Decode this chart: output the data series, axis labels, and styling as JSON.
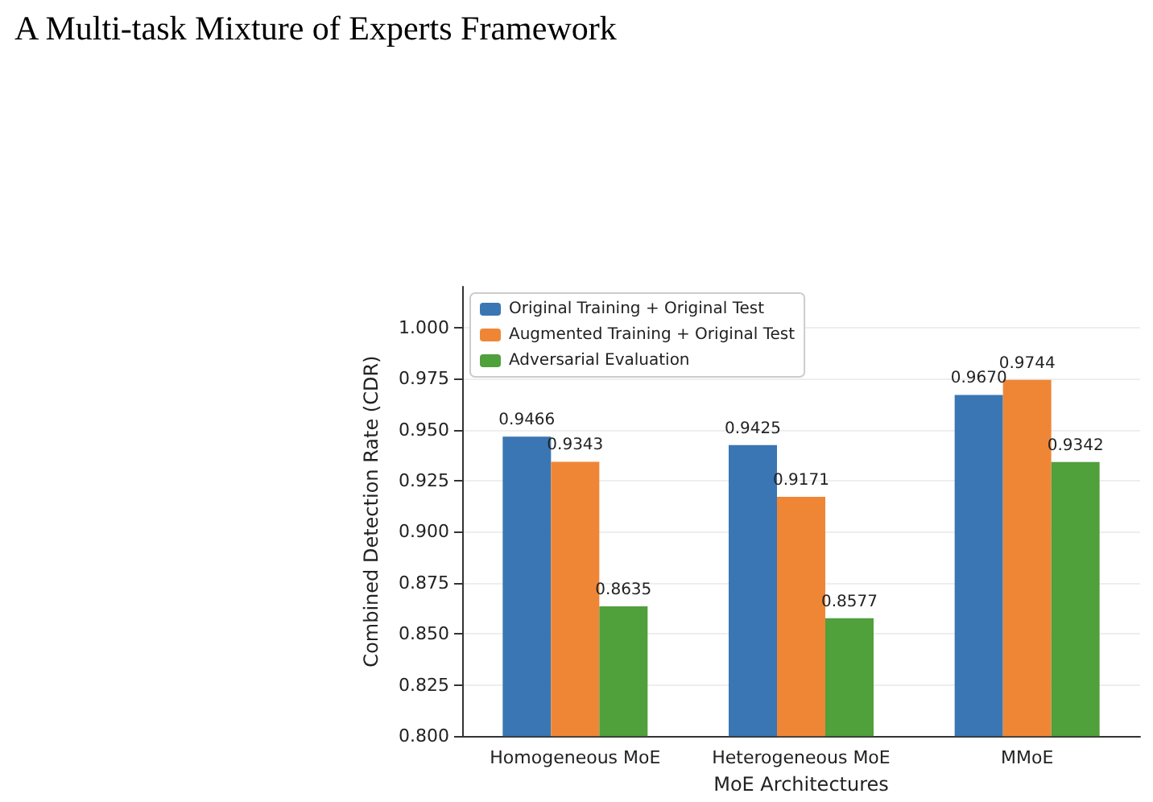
{
  "chart_data": {
    "type": "bar",
    "title": "A Multi-task Mixture of Experts Framework",
    "xlabel": "MoE Architectures",
    "ylabel": "Combined Detection Rate (CDR)",
    "categories": [
      "Homogeneous MoE",
      "Heterogeneous MoE",
      "MMoE"
    ],
    "series": [
      {
        "name": "Original Training + Original Test",
        "color": "#3a76b3",
        "values": [
          0.9466,
          0.9425,
          0.967
        ],
        "value_labels": [
          "0.9466",
          "0.9425",
          "0.9670"
        ]
      },
      {
        "name": "Augmented Training + Original Test",
        "color": "#ef8636",
        "values": [
          0.9343,
          0.9171,
          0.9744
        ],
        "value_labels": [
          "0.9343",
          "0.9171",
          "0.9744"
        ]
      },
      {
        "name": "Adversarial Evaluation",
        "color": "#50a03c",
        "values": [
          0.8635,
          0.8577,
          0.9342
        ],
        "value_labels": [
          "0.8635",
          "0.8577",
          "0.9342"
        ]
      }
    ],
    "ylim": [
      0.8,
      1.02
    ],
    "yticks": [
      "0.800",
      "0.825",
      "0.850",
      "0.875",
      "0.900",
      "0.925",
      "0.950",
      "0.975",
      "1.000"
    ],
    "grid": "y",
    "legend": "top left"
  }
}
